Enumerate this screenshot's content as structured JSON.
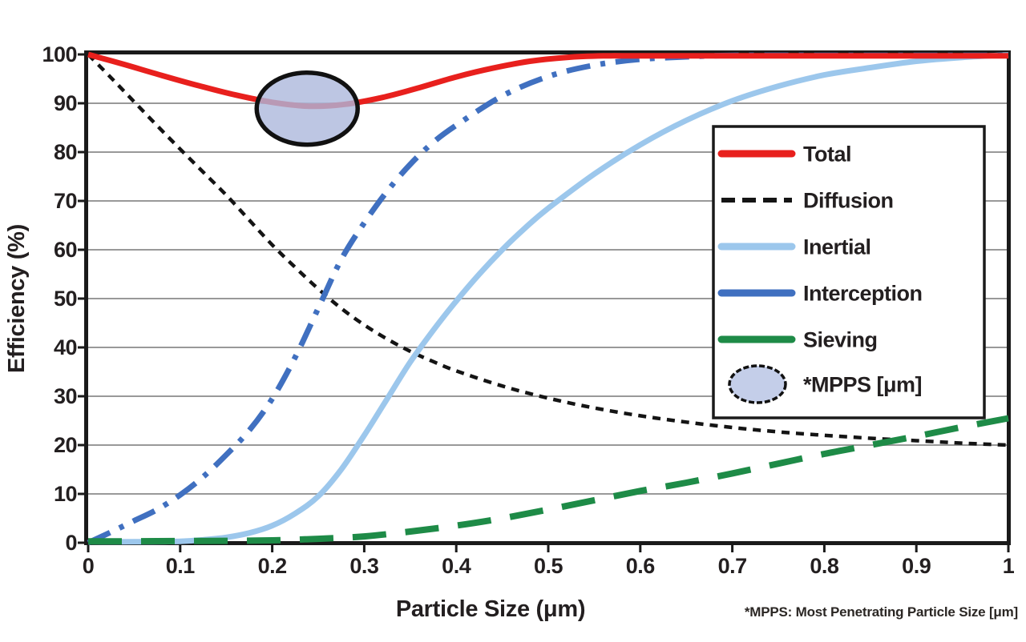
{
  "chart_data": {
    "type": "line",
    "xlabel": "Particle Size (μm)",
    "ylabel": "Efficiency (%)",
    "footnote": "*MPPS: Most Penetrating Particle Size [μm]",
    "xlim": [
      0,
      1
    ],
    "ylim": [
      0,
      100
    ],
    "grid": "horizontal",
    "legend_position": "inside-right",
    "x_ticks": {
      "values": [
        0,
        0.1,
        0.2,
        0.3,
        0.4,
        0.5,
        0.6,
        0.7,
        0.8,
        0.9,
        1
      ],
      "labels": [
        "0",
        "0.1",
        "0.2",
        "0.3",
        "0.4",
        "0.5",
        "0.6",
        "0.7",
        "0.8",
        "0.9",
        "1"
      ]
    },
    "y_ticks": {
      "values": [
        0,
        10,
        20,
        30,
        40,
        50,
        60,
        70,
        80,
        90,
        100
      ],
      "labels": [
        "0",
        "10",
        "20",
        "30",
        "40",
        "50",
        "60",
        "70",
        "80",
        "90",
        "100"
      ]
    },
    "series": [
      {
        "name": "Diffusion",
        "color": "#141414",
        "style": "dashed",
        "dash": "10 8",
        "width": 4.5,
        "points": [
          [
            0,
            100
          ],
          [
            0.025,
            95.2
          ],
          [
            0.05,
            90.3
          ],
          [
            0.075,
            85.4
          ],
          [
            0.1,
            80.6
          ],
          [
            0.125,
            75.9
          ],
          [
            0.15,
            71.2
          ],
          [
            0.175,
            66.1
          ],
          [
            0.2,
            61
          ],
          [
            0.225,
            56.4
          ],
          [
            0.25,
            52
          ],
          [
            0.275,
            48
          ],
          [
            0.3,
            44.6
          ],
          [
            0.325,
            41.7
          ],
          [
            0.35,
            39.2
          ],
          [
            0.375,
            37.1
          ],
          [
            0.4,
            35.2
          ],
          [
            0.45,
            32.1
          ],
          [
            0.5,
            29.6
          ],
          [
            0.55,
            27.6
          ],
          [
            0.6,
            26
          ],
          [
            0.65,
            24.7
          ],
          [
            0.7,
            23.6
          ],
          [
            0.75,
            22.7
          ],
          [
            0.8,
            22
          ],
          [
            0.85,
            21.4
          ],
          [
            0.9,
            20.9
          ],
          [
            0.95,
            20.4
          ],
          [
            1,
            20
          ]
        ]
      },
      {
        "name": "Inertial",
        "color": "#9CC7EC",
        "style": "solid",
        "dash": null,
        "width": 7,
        "points": [
          [
            0,
            0.2
          ],
          [
            0.05,
            0.2
          ],
          [
            0.1,
            0.3
          ],
          [
            0.125,
            0.6
          ],
          [
            0.15,
            1.1
          ],
          [
            0.175,
            2
          ],
          [
            0.2,
            3.5
          ],
          [
            0.225,
            6
          ],
          [
            0.25,
            9.5
          ],
          [
            0.275,
            15
          ],
          [
            0.3,
            22
          ],
          [
            0.325,
            29.5
          ],
          [
            0.35,
            37
          ],
          [
            0.375,
            43.5
          ],
          [
            0.4,
            49.5
          ],
          [
            0.425,
            55
          ],
          [
            0.45,
            60
          ],
          [
            0.475,
            64.5
          ],
          [
            0.5,
            68.5
          ],
          [
            0.55,
            75.5
          ],
          [
            0.6,
            81.5
          ],
          [
            0.65,
            86.5
          ],
          [
            0.7,
            90.5
          ],
          [
            0.75,
            93.5
          ],
          [
            0.8,
            95.8
          ],
          [
            0.85,
            97.3
          ],
          [
            0.9,
            98.6
          ],
          [
            0.95,
            99.4
          ],
          [
            1,
            99.9
          ]
        ]
      },
      {
        "name": "Interception",
        "color": "#4070C0",
        "style": "dash-dot",
        "dash": "30 13 6 13",
        "width": 7,
        "points": [
          [
            0,
            0
          ],
          [
            0.025,
            2.2
          ],
          [
            0.05,
            4.5
          ],
          [
            0.075,
            6.8
          ],
          [
            0.1,
            9.8
          ],
          [
            0.125,
            13.5
          ],
          [
            0.15,
            18
          ],
          [
            0.175,
            23
          ],
          [
            0.2,
            29.5
          ],
          [
            0.225,
            38
          ],
          [
            0.25,
            48
          ],
          [
            0.275,
            58
          ],
          [
            0.3,
            65.5
          ],
          [
            0.325,
            72
          ],
          [
            0.35,
            77.5
          ],
          [
            0.375,
            82
          ],
          [
            0.4,
            85.5
          ],
          [
            0.45,
            91.5
          ],
          [
            0.5,
            95.5
          ],
          [
            0.55,
            97.8
          ],
          [
            0.6,
            99
          ],
          [
            0.65,
            99.5
          ],
          [
            0.7,
            99.8
          ],
          [
            0.8,
            99.8
          ],
          [
            0.9,
            99.8
          ],
          [
            1,
            99.8
          ]
        ]
      },
      {
        "name": "Sieving",
        "color": "#1E8B47",
        "style": "long-dash",
        "dash": "42 24",
        "width": 8,
        "points": [
          [
            0,
            0.3
          ],
          [
            0.05,
            0.3
          ],
          [
            0.1,
            0.35
          ],
          [
            0.15,
            0.4
          ],
          [
            0.2,
            0.5
          ],
          [
            0.25,
            0.8
          ],
          [
            0.3,
            1.3
          ],
          [
            0.35,
            2.3
          ],
          [
            0.4,
            3.5
          ],
          [
            0.45,
            5
          ],
          [
            0.5,
            6.8
          ],
          [
            0.55,
            8.7
          ],
          [
            0.6,
            10.6
          ],
          [
            0.65,
            12.3
          ],
          [
            0.7,
            14.2
          ],
          [
            0.75,
            16.2
          ],
          [
            0.8,
            18.2
          ],
          [
            0.85,
            20
          ],
          [
            0.9,
            21.8
          ],
          [
            0.95,
            23.7
          ],
          [
            1,
            25.5
          ]
        ]
      },
      {
        "name": "Total",
        "color": "#E8201D",
        "style": "solid",
        "dash": null,
        "width": 7,
        "points": [
          [
            0,
            100
          ],
          [
            0.04,
            97.9
          ],
          [
            0.08,
            95.7
          ],
          [
            0.12,
            93.6
          ],
          [
            0.16,
            91.7
          ],
          [
            0.2,
            90.2
          ],
          [
            0.24,
            89.4
          ],
          [
            0.28,
            89.8
          ],
          [
            0.32,
            91.2
          ],
          [
            0.36,
            93.2
          ],
          [
            0.4,
            95.4
          ],
          [
            0.44,
            97.2
          ],
          [
            0.48,
            98.6
          ],
          [
            0.52,
            99.4
          ],
          [
            0.56,
            99.7
          ],
          [
            0.6,
            99.7
          ],
          [
            0.7,
            99.7
          ],
          [
            0.85,
            99.7
          ],
          [
            1,
            99.7
          ]
        ]
      }
    ],
    "annotation": {
      "label": "*MPPS [μm]",
      "x": 0.238,
      "y": 88.9,
      "shape": "ellipse",
      "fill": "#ACB8DC",
      "outline": "#111111"
    }
  },
  "legend": {
    "items": [
      {
        "label": "Total",
        "swatch": "line",
        "color": "#E8201D",
        "dash": null
      },
      {
        "label": "Diffusion",
        "swatch": "line",
        "color": "#141414",
        "dash": "17 9"
      },
      {
        "label": "Inertial",
        "swatch": "line",
        "color": "#9CC7EC",
        "dash": null
      },
      {
        "label": "Interception",
        "swatch": "line",
        "color": "#4070C0",
        "dash": null
      },
      {
        "label": "Sieving",
        "swatch": "line",
        "color": "#1E8B47",
        "dash": null
      },
      {
        "label": "*MPPS [μm]",
        "swatch": "ellipse",
        "color": "#C4CEE9",
        "outline": "#111111"
      }
    ]
  },
  "colors": {
    "gridline": "#999999",
    "axis_border": "#1a1a1a",
    "text": "#231F20",
    "background": "#ffffff"
  }
}
